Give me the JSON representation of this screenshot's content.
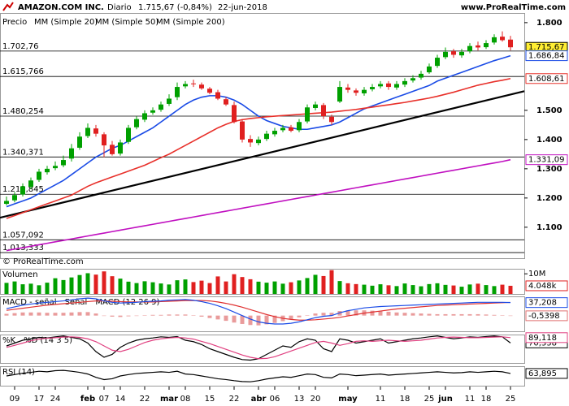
{
  "chart_data": [
    {
      "type": "candlestick",
      "title": "AMAZON.COM INC.",
      "period": "Diario",
      "last_price": "1.715,67 (-0,84%)",
      "date": "22-jun-2018",
      "source": "www.ProRealTime.com",
      "credit": "© ProRealTime.com",
      "price_name": "Precio",
      "categories": [
        null,
        "09",
        null,
        null,
        "17",
        null,
        "24",
        null,
        null,
        null,
        "feb",
        null,
        "07",
        null,
        "14",
        null,
        null,
        "22",
        null,
        null,
        "mar",
        null,
        "08",
        null,
        null,
        "15",
        null,
        null,
        "22",
        null,
        null,
        "abr",
        null,
        "06",
        null,
        null,
        "13",
        null,
        "20",
        null,
        null,
        null,
        "may",
        null,
        null,
        null,
        "11",
        null,
        null,
        "18",
        null,
        null,
        "25",
        null,
        "jun",
        null,
        null,
        "11",
        null,
        "18",
        null,
        null,
        "25"
      ],
      "open": [
        1180,
        1192,
        1212,
        1238,
        1262,
        1288,
        1302,
        1312,
        1335,
        1372,
        1412,
        1438,
        1418,
        1382,
        1352,
        1392,
        1442,
        1468,
        1492,
        1502,
        1522,
        1545,
        1582,
        1592,
        1588,
        1574,
        1562,
        1538,
        1518,
        1462,
        1402,
        1388,
        1402,
        1418,
        1432,
        1442,
        1432,
        1462,
        1508,
        1518,
        1478,
        1530,
        1578,
        1568,
        1558,
        1572,
        1582,
        1592,
        1578,
        1588,
        1602,
        1612,
        1630,
        1652,
        1682,
        1702,
        1688,
        1702,
        1722,
        1716,
        1732,
        1752,
        1742
      ],
      "high": [
        1205,
        1220,
        1250,
        1270,
        1300,
        1310,
        1325,
        1345,
        1385,
        1425,
        1455,
        1450,
        1425,
        1395,
        1400,
        1450,
        1480,
        1500,
        1510,
        1530,
        1555,
        1595,
        1600,
        1605,
        1595,
        1580,
        1570,
        1545,
        1530,
        1470,
        1415,
        1410,
        1430,
        1440,
        1450,
        1450,
        1470,
        1520,
        1530,
        1525,
        1485,
        1600,
        1590,
        1575,
        1580,
        1590,
        1600,
        1600,
        1600,
        1610,
        1620,
        1635,
        1660,
        1690,
        1715,
        1710,
        1710,
        1730,
        1735,
        1740,
        1760,
        1770,
        1755
      ],
      "low": [
        1175,
        1185,
        1205,
        1230,
        1255,
        1280,
        1295,
        1305,
        1325,
        1365,
        1405,
        1410,
        1340,
        1345,
        1345,
        1385,
        1435,
        1460,
        1485,
        1495,
        1515,
        1535,
        1575,
        1580,
        1570,
        1555,
        1535,
        1515,
        1455,
        1390,
        1375,
        1380,
        1395,
        1410,
        1425,
        1425,
        1425,
        1455,
        1500,
        1470,
        1450,
        1525,
        1560,
        1550,
        1550,
        1565,
        1575,
        1570,
        1570,
        1580,
        1595,
        1605,
        1625,
        1645,
        1675,
        1680,
        1680,
        1695,
        1705,
        1710,
        1725,
        1735,
        1705
      ],
      "close": [
        1190,
        1210,
        1240,
        1260,
        1290,
        1300,
        1310,
        1330,
        1370,
        1410,
        1440,
        1420,
        1380,
        1350,
        1390,
        1440,
        1470,
        1490,
        1500,
        1520,
        1540,
        1580,
        1590,
        1590,
        1575,
        1560,
        1540,
        1520,
        1460,
        1400,
        1390,
        1400,
        1420,
        1430,
        1440,
        1430,
        1460,
        1510,
        1520,
        1480,
        1460,
        1580,
        1570,
        1560,
        1570,
        1580,
        1590,
        1580,
        1590,
        1600,
        1610,
        1625,
        1650,
        1680,
        1700,
        1690,
        1700,
        1720,
        1715,
        1730,
        1750,
        1740,
        1715.67
      ],
      "last_label": "1.715,67",
      "up_color": "#00a000",
      "down_color": "#e02020",
      "series": [
        {
          "name": "MM (Simple 20)",
          "color": "#1a4be6",
          "last_label": "1.686,84",
          "values": [
            1170,
            1180,
            1190,
            1200,
            1215,
            1230,
            1245,
            1260,
            1280,
            1300,
            1320,
            1340,
            1355,
            1370,
            1380,
            1395,
            1410,
            1425,
            1440,
            1460,
            1480,
            1500,
            1520,
            1535,
            1545,
            1550,
            1550,
            1545,
            1535,
            1520,
            1500,
            1480,
            1465,
            1455,
            1445,
            1440,
            1435,
            1435,
            1440,
            1445,
            1450,
            1460,
            1475,
            1490,
            1505,
            1515,
            1525,
            1535,
            1545,
            1555,
            1565,
            1575,
            1585,
            1600,
            1610,
            1620,
            1630,
            1640,
            1650,
            1660,
            1670,
            1678,
            1686.84
          ]
        },
        {
          "name": "MM (Simple 50)",
          "color": "#e8302a",
          "last_label": "1.608,61",
          "values": [
            1130,
            1140,
            1150,
            1160,
            1170,
            1180,
            1190,
            1200,
            1210,
            1225,
            1240,
            1252,
            1262,
            1272,
            1282,
            1292,
            1302,
            1312,
            1325,
            1338,
            1350,
            1365,
            1380,
            1395,
            1410,
            1425,
            1440,
            1452,
            1462,
            1468,
            1472,
            1475,
            1478,
            1480,
            1482,
            1484,
            1486,
            1488,
            1490,
            1492,
            1494,
            1497,
            1500,
            1503,
            1507,
            1511,
            1515,
            1519,
            1523,
            1527,
            1532,
            1537,
            1542,
            1548,
            1555,
            1562,
            1570,
            1578,
            1586,
            1592,
            1598,
            1603,
            1608.61
          ]
        },
        {
          "name": "MM (Simple 200)",
          "color": "#c010c0",
          "last_label": "1.331,09",
          "values": [
            1020,
            1025,
            1030,
            1035,
            1040,
            1045,
            1050,
            1055,
            1060,
            1065,
            1070,
            1075,
            1080,
            1085,
            1090,
            1095,
            1100,
            1105,
            1110,
            1115,
            1120,
            1125,
            1130,
            1135,
            1140,
            1145,
            1150,
            1155,
            1160,
            1165,
            1170,
            1175,
            1180,
            1185,
            1190,
            1195,
            1200,
            1205,
            1210,
            1215,
            1220,
            1225,
            1230,
            1235,
            1240,
            1245,
            1250,
            1255,
            1260,
            1265,
            1270,
            1275,
            1280,
            1285,
            1290,
            1295,
            1300,
            1305,
            1310,
            1315,
            1320,
            1325,
            1331.09
          ]
        }
      ],
      "levels": [
        {
          "value": 1702.76,
          "label": "1.702,76"
        },
        {
          "value": 1615.766,
          "label": "1.615,766"
        },
        {
          "value": 1480.254,
          "label": "1.480,254"
        },
        {
          "value": 1340.371,
          "label": "1.340,371"
        },
        {
          "value": 1212.845,
          "label": "1.212,845"
        },
        {
          "value": 1057.092,
          "label": "1.057,092"
        },
        {
          "value": 1013.333,
          "label": "1.013,333"
        }
      ],
      "trendline": {
        "values": [
          1138,
          1554
        ],
        "color": "#000000"
      },
      "ylim": [
        994,
        1833
      ],
      "yticks": [
        {
          "value": 1100,
          "label": "1.100"
        },
        {
          "value": 1200,
          "label": "1.200"
        },
        {
          "value": 1300,
          "label": "1.300"
        },
        {
          "value": 1400,
          "label": "1.400"
        },
        {
          "value": 1500,
          "label": "1.500"
        },
        {
          "value": 1800,
          "label": "1.800"
        }
      ]
    },
    {
      "type": "bar",
      "title": "Volumen",
      "color": "#00a000",
      "values": [
        5500,
        6200,
        4800,
        5100,
        4300,
        5600,
        7800,
        6900,
        8200,
        9400,
        10300,
        9600,
        11200,
        8800,
        7600,
        6100,
        5400,
        6300,
        5800,
        5200,
        4700,
        6800,
        7200,
        5900,
        6600,
        5400,
        8700,
        6200,
        9800,
        8400,
        7300,
        6100,
        5600,
        6200,
        5100,
        5800,
        6700,
        7900,
        9500,
        8900,
        11800,
        6400,
        5300,
        4900,
        4600,
        4100,
        4800,
        4300,
        3900,
        5200,
        4400,
        3800,
        4900,
        5300,
        4500,
        4200,
        3600,
        4700,
        5100,
        4400,
        3900,
        4600,
        4048
      ],
      "last_label": "4.048k",
      "ylim": [
        0,
        12500
      ],
      "yticks": [
        {
          "value": 10000,
          "label": "10M"
        }
      ]
    },
    {
      "type": "macd",
      "ylim": [
        -45,
        55
      ],
      "series": [
        {
          "name": "MACD - señal",
          "color": "#e07070",
          "last_label": "-0,5398",
          "values": [
            5,
            7,
            9,
            9,
            9,
            8,
            8,
            8,
            9,
            10,
            10,
            6,
            0,
            -3,
            -4,
            -2,
            -1,
            1,
            2,
            2,
            3,
            3,
            3,
            1,
            -3,
            -7,
            -11,
            -15,
            -20,
            -24,
            -27,
            -28,
            -25,
            -21,
            -16,
            -11,
            -5,
            1,
            6,
            8,
            8,
            13,
            15,
            15,
            15,
            14,
            13,
            11,
            9,
            8,
            7,
            6,
            5,
            4,
            4,
            4,
            4,
            4,
            4,
            3,
            2,
            1,
            -0.5398
          ]
        },
        {
          "name": "Señal",
          "color": "#e03030",
          "values": [
            15,
            18,
            21,
            24,
            27,
            30,
            32,
            34,
            36,
            38,
            40,
            42,
            42,
            41,
            40,
            39,
            39,
            39,
            39,
            40,
            41,
            42,
            43,
            43,
            43,
            42,
            39,
            35,
            30,
            24,
            17,
            10,
            3,
            -3,
            -8,
            -11,
            -13,
            -13,
            -12,
            -10,
            -8,
            -5,
            -1,
            3,
            7,
            10,
            13,
            16,
            19,
            21,
            23,
            25,
            27,
            29,
            30,
            31,
            32,
            33,
            34,
            35,
            36,
            37,
            37.7478
          ]
        },
        {
          "name": "MACD (12 26 9)",
          "color": "#1a4be6",
          "last_label": "37,208",
          "values": [
            20,
            25,
            30,
            33,
            36,
            38,
            40,
            42,
            45,
            48,
            50,
            48,
            42,
            38,
            36,
            37,
            38,
            40,
            41,
            42,
            44,
            45,
            46,
            44,
            40,
            35,
            28,
            20,
            10,
            0,
            -10,
            -18,
            -22,
            -24,
            -24,
            -22,
            -18,
            -12,
            -6,
            -2,
            0,
            8,
            14,
            18,
            22,
            24,
            26,
            27,
            28,
            29,
            30,
            31,
            32,
            33,
            34,
            35,
            36,
            37,
            38,
            38,
            38,
            38,
            37.208
          ]
        }
      ]
    },
    {
      "type": "line",
      "ylim": [
        0,
        100
      ],
      "series": [
        {
          "name": "%K",
          "color": "#000000",
          "last_label": "70,338",
          "values": [
            60,
            70,
            80,
            85,
            90,
            88,
            92,
            95,
            90,
            85,
            70,
            40,
            20,
            30,
            55,
            70,
            80,
            85,
            88,
            92,
            90,
            93,
            80,
            75,
            65,
            50,
            40,
            30,
            20,
            12,
            10,
            15,
            30,
            45,
            60,
            55,
            75,
            85,
            80,
            50,
            40,
            85,
            80,
            70,
            75,
            80,
            85,
            70,
            75,
            80,
            85,
            88,
            92,
            95,
            90,
            85,
            88,
            92,
            90,
            93,
            95,
            92,
            70.338
          ]
        },
        {
          "name": "%D (14 3 5)",
          "color": "#e04080",
          "last_label": "89,118",
          "values": [
            55,
            62,
            70,
            78,
            84,
            87,
            89,
            91,
            92,
            90,
            85,
            75,
            60,
            45,
            40,
            48,
            60,
            72,
            80,
            85,
            88,
            90,
            88,
            84,
            76,
            68,
            58,
            48,
            38,
            28,
            20,
            15,
            16,
            22,
            32,
            42,
            52,
            62,
            72,
            76,
            70,
            62,
            68,
            76,
            78,
            76,
            78,
            80,
            78,
            76,
            78,
            80,
            84,
            88,
            90,
            91,
            90,
            89,
            89,
            90,
            91,
            92,
            89.118
          ]
        }
      ]
    },
    {
      "type": "line",
      "ylim": [
        20,
        90
      ],
      "series": [
        {
          "name": "RSI (14)",
          "color": "#000000",
          "last_label": "63,895",
          "values": [
            55,
            60,
            65,
            68,
            72,
            70,
            74,
            75,
            72,
            68,
            62,
            50,
            42,
            45,
            55,
            60,
            64,
            66,
            68,
            70,
            68,
            72,
            62,
            60,
            55,
            50,
            45,
            42,
            38,
            35,
            34,
            38,
            44,
            48,
            52,
            50,
            56,
            62,
            60,
            50,
            48,
            62,
            60,
            56,
            58,
            60,
            62,
            58,
            60,
            62,
            64,
            66,
            68,
            70,
            68,
            66,
            67,
            70,
            68,
            70,
            72,
            70,
            63.895
          ]
        }
      ]
    }
  ]
}
